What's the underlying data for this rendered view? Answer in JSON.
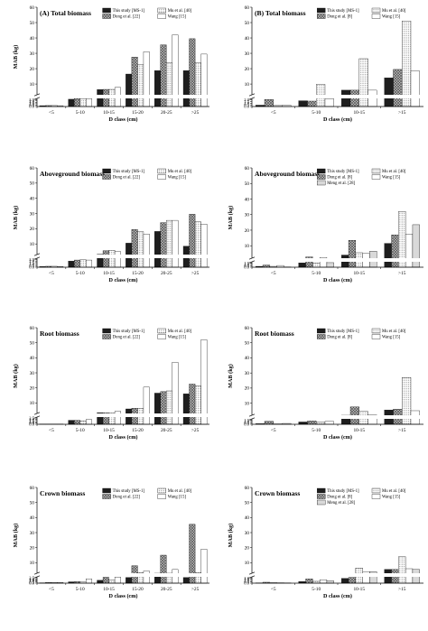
{
  "chart_data": [
    {
      "type": "bar",
      "title": "(A) Total biomass",
      "xlabel": "D class (cm)",
      "ylabel": "MAB (kg)",
      "categories": [
        "<5",
        "5-10",
        "10-15",
        "15-20",
        "20-25",
        ">25"
      ],
      "y_break": true,
      "ylim_lower": [
        0,
        2.9
      ],
      "yticks_lower": [
        "0.0",
        "0.5",
        "1.0",
        "1.5",
        "2.0",
        "2.5"
      ],
      "ylim_upper": [
        3,
        60
      ],
      "yticks_upper": [
        "10",
        "20",
        "30",
        "40",
        "50",
        "60"
      ],
      "legend": [
        "This study [MS-1]",
        "Mu et al. [40]",
        "Dong et al. [22]",
        "Wang [15]"
      ],
      "series": [
        {
          "name": "This study [MS-1]",
          "pattern": "black",
          "values": [
            0.3,
            2.6,
            6.4,
            16.5,
            18.7,
            18.7
          ]
        },
        {
          "name": "Dong et al. [22]",
          "pattern": "cross",
          "values": [
            0.35,
            2.8,
            6.5,
            27.5,
            35.5,
            39.5
          ]
        },
        {
          "name": "Mu et al. [40]",
          "pattern": "dots",
          "values": [
            0.35,
            2.7,
            6.5,
            22.5,
            24.0,
            24.0
          ]
        },
        {
          "name": "Wang [15]",
          "pattern": "white",
          "values": [
            0.3,
            2.8,
            7.8,
            31.0,
            42.0,
            29.5
          ]
        }
      ]
    },
    {
      "type": "bar",
      "title": "(B) Total biomass",
      "xlabel": "D class (cm)",
      "ylabel": "",
      "categories": [
        "<5",
        "5-10",
        "10-15",
        ">15"
      ],
      "y_break": true,
      "ylim_lower": [
        0,
        2.4
      ],
      "yticks_lower": [
        "0.0",
        "0.5",
        "1.0",
        "1.5",
        "2.0"
      ],
      "ylim_upper": [
        3,
        60
      ],
      "yticks_upper": [
        "10",
        "20",
        "30",
        "40",
        "50",
        "60"
      ],
      "legend": [
        "This study [MS-1]",
        "Mu et al. [40]",
        "Dong et al. [8]",
        "Wang [15]"
      ],
      "series": [
        {
          "name": "This study [MS-1]",
          "pattern": "black",
          "values": [
            0.4,
            1.7,
            6.0,
            14.0
          ]
        },
        {
          "name": "Dong et al. [8]",
          "pattern": "cross",
          "values": [
            2.1,
            1.6,
            6.0,
            19.5
          ]
        },
        {
          "name": "Mu et al. [40]",
          "pattern": "dots",
          "values": [
            0.3,
            9.8,
            26.5,
            51.0
          ]
        },
        {
          "name": "Wang [15]",
          "pattern": "white",
          "values": [
            0.4,
            2.3,
            6.0,
            18.5
          ]
        }
      ]
    },
    {
      "type": "bar",
      "title": "Aboveground biomass",
      "xlabel": "D class (cm)",
      "ylabel": "MAB (kg)",
      "categories": [
        "<5",
        "5-10",
        "10-15",
        "15-20",
        "20-25",
        ">25"
      ],
      "y_break": true,
      "ylim_lower": [
        0,
        2.9
      ],
      "yticks_lower": [
        "0.0",
        "0.5",
        "1.0",
        "1.5",
        "2.0",
        "2.5"
      ],
      "ylim_upper": [
        3,
        60
      ],
      "yticks_upper": [
        "10",
        "20",
        "30",
        "40",
        "50",
        "60"
      ],
      "legend": [
        "This study [MS-1]",
        "Mu et al. [40]",
        "Dong et al. [22]",
        "Wang [15]"
      ],
      "series": [
        {
          "name": "This study [MS-1]",
          "pattern": "black",
          "values": [
            0.2,
            1.95,
            3.2,
            10.5,
            18.2,
            8.5
          ]
        },
        {
          "name": "Dong et al. [22]",
          "pattern": "cross",
          "values": [
            0.3,
            2.3,
            5.5,
            19.5,
            24.0,
            29.5
          ]
        },
        {
          "name": "Mu et al. [40]",
          "pattern": "dots",
          "values": [
            0.3,
            2.4,
            5.8,
            18.0,
            25.5,
            24.5
          ]
        },
        {
          "name": "Wang [15]",
          "pattern": "white",
          "values": [
            0.2,
            2.3,
            5.0,
            16.5,
            25.5,
            23.0
          ]
        }
      ]
    },
    {
      "type": "bar",
      "title": "Aboveground biomass",
      "xlabel": "D class (cm)",
      "ylabel": "MAB (kg)",
      "categories": [
        "<5",
        "5-10",
        "10-15",
        ">15"
      ],
      "y_break": true,
      "ylim_lower": [
        0,
        1.9
      ],
      "yticks_lower": [
        "0.0",
        "0.5",
        "1.0",
        "1.5"
      ],
      "ylim_upper": [
        2,
        60
      ],
      "yticks_upper": [
        "10",
        "20",
        "30",
        "40",
        "50",
        "60"
      ],
      "legend": [
        "This study [MS-1]",
        "Mu et al. [40]",
        "Dong et al. [8]",
        "Wang [15]",
        "Meng et al. [28]"
      ],
      "series": [
        {
          "name": "This study [MS-1]",
          "pattern": "black",
          "values": [
            0.3,
            1.5,
            4.0,
            11.5
          ]
        },
        {
          "name": "Dong et al. [8]",
          "pattern": "cross",
          "values": [
            0.75,
            2.8,
            13.5,
            17.0
          ]
        },
        {
          "name": "Mu et al. [40]",
          "pattern": "dots",
          "values": [
            0.3,
            1.5,
            5.5,
            32.0
          ]
        },
        {
          "name": "Wang [15]",
          "pattern": "white",
          "values": [
            0.6,
            2.4,
            5.0,
            17.5
          ]
        },
        {
          "name": "Meng et al. [28]",
          "pattern": "grey",
          "values": [
            0.1,
            1.6,
            6.5,
            23.5
          ]
        }
      ]
    },
    {
      "type": "bar",
      "title": "Root biomass",
      "xlabel": "D class (cm)",
      "ylabel": "MAB (kg)",
      "categories": [
        "<5",
        "5-10",
        "10-15",
        "15-20",
        "20-25",
        ">25"
      ],
      "y_break": true,
      "ylim_lower": [
        0,
        2.9
      ],
      "yticks_lower": [
        "0.0",
        "0.5",
        "1.0",
        "1.5",
        "2.0",
        "2.5"
      ],
      "ylim_upper": [
        3,
        60
      ],
      "yticks_upper": [
        "10",
        "20",
        "30",
        "40",
        "50",
        "60"
      ],
      "legend": [
        "This study [MS-1]",
        "Mu et al. [40]",
        "Dong et al. [22]",
        "Wang [15]"
      ],
      "series": [
        {
          "name": "This study [MS-1]",
          "pattern": "black",
          "values": [
            0.1,
            1.6,
            3.5,
            6.0,
            16.5,
            16.0
          ]
        },
        {
          "name": "Dong et al. [22]",
          "pattern": "cross",
          "values": [
            0.1,
            1.6,
            3.5,
            6.5,
            17.5,
            22.5
          ]
        },
        {
          "name": "Mu et al. [40]",
          "pattern": "dots",
          "values": [
            0.08,
            1.4,
            3.5,
            6.5,
            18.0,
            21.5
          ]
        },
        {
          "name": "Wang [15]",
          "pattern": "white",
          "values": [
            0.08,
            1.9,
            4.5,
            20.5,
            37.0,
            52.0
          ]
        }
      ]
    },
    {
      "type": "bar",
      "title": "Root biomass",
      "xlabel": "D class (cm)",
      "ylabel": "MAB (kg)",
      "categories": [
        "<5",
        "5-10",
        "10-15",
        ">15"
      ],
      "y_break": true,
      "ylim_lower": [
        0,
        1.9
      ],
      "yticks_lower": [
        "0.0",
        "0.5",
        "1.0",
        "1.5"
      ],
      "ylim_upper": [
        2,
        60
      ],
      "yticks_upper": [
        "10",
        "20",
        "30",
        "40",
        "50",
        "60"
      ],
      "legend": [
        "This study [MS-1]",
        "Mu et al. [40]",
        "Dong et al. [8]",
        "Wang [15]"
      ],
      "series": [
        {
          "name": "This study [MS-1]",
          "pattern": "black",
          "values": [
            0.2,
            0.8,
            2.0,
            5.5
          ]
        },
        {
          "name": "Dong et al. [8]",
          "pattern": "cross",
          "values": [
            1.05,
            1.15,
            7.5,
            6.0
          ]
        },
        {
          "name": "Mu et al. [40]",
          "pattern": "dots",
          "values": [
            0.15,
            0.85,
            4.5,
            27.0
          ]
        },
        {
          "name": "Wang [15]",
          "pattern": "white",
          "values": [
            0.3,
            1.0,
            2.2,
            5.0
          ]
        }
      ]
    },
    {
      "type": "bar",
      "title": "Crown biomass",
      "xlabel": "D class (cm)",
      "ylabel": "MAB (kg)",
      "categories": [
        "<5",
        "5-10",
        "10-15",
        "15-20",
        "20-25",
        ">25"
      ],
      "y_break": true,
      "ylim_lower": [
        0,
        2.9
      ],
      "yticks_lower": [
        "0.0",
        "0.5",
        "1.0",
        "1.5",
        "2.0",
        "2.5"
      ],
      "ylim_upper": [
        3,
        60
      ],
      "yticks_upper": [
        "10",
        "20",
        "30",
        "40",
        "50",
        "60"
      ],
      "legend": [
        "This study [MS-1]",
        "Mu et al. [40]",
        "Dong et al. [22]",
        "Wang [15]"
      ],
      "series": [
        {
          "name": "This study [MS-1]",
          "pattern": "black",
          "values": [
            0.15,
            0.6,
            1.3,
            2.6,
            3.0,
            2.6
          ]
        },
        {
          "name": "Dong et al. [22]",
          "pattern": "cross",
          "values": [
            0.3,
            0.7,
            2.7,
            8.0,
            15.0,
            35.5
          ]
        },
        {
          "name": "Mu et al. [40]",
          "pattern": "dots",
          "values": [
            0.3,
            0.5,
            1.5,
            3.5,
            3.0,
            3.5
          ]
        },
        {
          "name": "Wang [15]",
          "pattern": "white",
          "values": [
            0.3,
            2.0,
            2.8,
            4.5,
            5.5,
            19.0
          ]
        }
      ]
    },
    {
      "type": "bar",
      "title": "Crown biomass",
      "xlabel": "D class (cm)",
      "ylabel": "MAB (kg)",
      "categories": [
        "<5",
        "5-10",
        "10-15",
        ">15"
      ],
      "y_break": true,
      "ylim_lower": [
        0,
        2.4
      ],
      "yticks_lower": [
        "0.0",
        "0.5",
        "1.0",
        "1.5",
        "2.0"
      ],
      "ylim_upper": [
        3,
        60
      ],
      "yticks_upper": [
        "10",
        "20",
        "30",
        "40",
        "50",
        "60"
      ],
      "legend": [
        "This study [MS-1]",
        "Mu et al. [40]",
        "Dong et al. [8]",
        "Wang [15]",
        "Meng et al. [28]"
      ],
      "series": [
        {
          "name": "This study [MS-1]",
          "pattern": "black",
          "values": [
            0.1,
            0.6,
            1.8,
            5.5
          ]
        },
        {
          "name": "Dong et al. [8]",
          "pattern": "cross",
          "values": [
            0.35,
            1.6,
            2.2,
            5.5
          ]
        },
        {
          "name": "Mu et al. [40]",
          "pattern": "dots",
          "values": [
            0.2,
            0.7,
            6.5,
            14.0
          ]
        },
        {
          "name": "Wang [15]",
          "pattern": "white",
          "values": [
            0.15,
            1.3,
            4.0,
            6.0
          ]
        },
        {
          "name": "Meng et al. [28]",
          "pattern": "grey",
          "values": [
            0.1,
            0.9,
            4.0,
            5.5
          ]
        }
      ]
    }
  ]
}
